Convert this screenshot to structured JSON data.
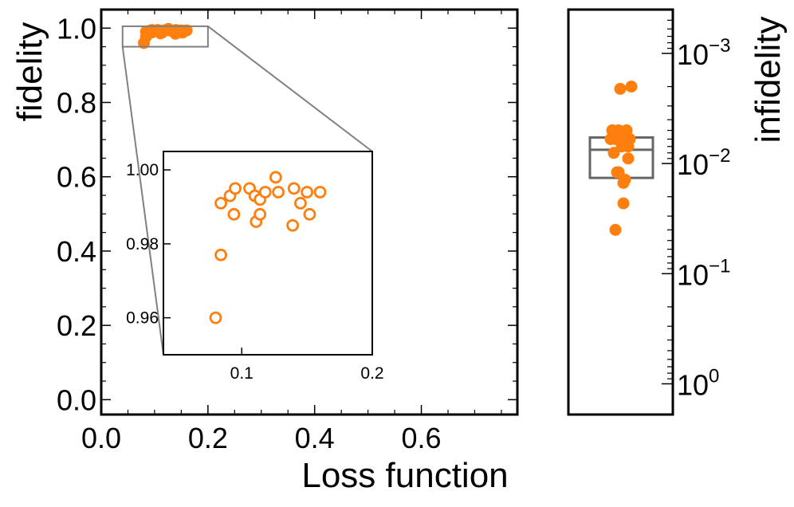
{
  "chart_data": [
    {
      "id": "main",
      "type": "scatter",
      "xlabel": "Loss function",
      "ylabel": "fidelity",
      "xlim": [
        0.0,
        0.78
      ],
      "ylim": [
        -0.04,
        1.05
      ],
      "xticks": [
        0.0,
        0.2,
        0.4,
        0.6
      ],
      "xticklabels": [
        "0.0",
        "0.2",
        "0.4",
        "0.6"
      ],
      "yticks": [
        0.0,
        0.2,
        0.4,
        0.6,
        0.8,
        1.0
      ],
      "yticklabels": [
        "0.0",
        "0.2",
        "0.4",
        "0.6",
        "0.8",
        "1.0"
      ],
      "marker": "filled-circle",
      "color": "#ff7f0e",
      "zoom_box": {
        "x": [
          0.04,
          0.2
        ],
        "y": [
          0.95,
          1.005
        ]
      },
      "series": [
        {
          "name": "trials",
          "points": [
            [
              0.08,
              0.96
            ],
            [
              0.084,
              0.977
            ],
            [
              0.084,
              0.991
            ],
            [
              0.091,
              0.993
            ],
            [
              0.094,
              0.988
            ],
            [
              0.095,
              0.995
            ],
            [
              0.106,
              0.995
            ],
            [
              0.11,
              0.993
            ],
            [
              0.111,
              0.986
            ],
            [
              0.114,
              0.988
            ],
            [
              0.114,
              0.992
            ],
            [
              0.118,
              0.994
            ],
            [
              0.126,
              0.998
            ],
            [
              0.128,
              0.994
            ],
            [
              0.139,
              0.985
            ],
            [
              0.14,
              0.995
            ],
            [
              0.145,
              0.991
            ],
            [
              0.15,
              0.994
            ],
            [
              0.152,
              0.988
            ],
            [
              0.16,
              0.994
            ]
          ]
        }
      ]
    },
    {
      "id": "inset",
      "type": "scatter",
      "xlim": [
        0.04,
        0.2
      ],
      "ylim": [
        0.95,
        1.005
      ],
      "xticks": [
        0.1,
        0.2
      ],
      "xticklabels": [
        "0.1",
        "0.2"
      ],
      "yticks": [
        0.96,
        0.98,
        1.0
      ],
      "yticklabels": [
        "0.96",
        "0.98",
        "1.00"
      ],
      "marker": "open-circle",
      "color": "#ff7f0e",
      "series_ref": "main"
    },
    {
      "id": "infidelity",
      "type": "scatter",
      "ylabel": "infidelity",
      "yscale": "log",
      "yinverted": true,
      "ylim": [
        0.0004,
        1.9
      ],
      "yticks": [
        0.001,
        0.01,
        0.1,
        1
      ],
      "yticklabels": [
        {
          "base": "10",
          "exp": "−3"
        },
        {
          "base": "10",
          "exp": "−2"
        },
        {
          "base": "10",
          "exp": "−1"
        },
        {
          "base": "10",
          "exp": "0"
        }
      ],
      "marker": "filled-circle",
      "color": "#ff7f0e",
      "values": [
        0.04,
        0.023,
        0.009,
        0.007,
        0.012,
        0.005,
        0.005,
        0.014,
        0.012,
        0.006,
        0.008,
        0.006,
        0.002,
        0.006,
        0.015,
        0.005,
        0.007,
        0.006,
        0.006,
        0.0021
      ],
      "box": {
        "q1": 0.0058,
        "median": 0.0075,
        "q3": 0.0135
      }
    }
  ]
}
